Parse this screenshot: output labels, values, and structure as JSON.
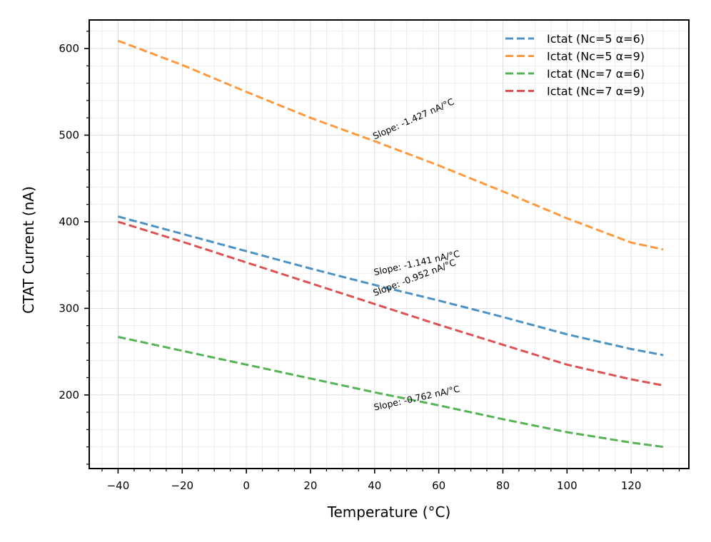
{
  "chart_data": {
    "type": "line",
    "title": "",
    "xlabel": "Temperature (°C)",
    "ylabel": "CTAT Current (nA)",
    "xlim": [
      -49,
      138
    ],
    "ylim": [
      115,
      633
    ],
    "x_ticks": [
      -40,
      -20,
      0,
      20,
      40,
      60,
      80,
      100,
      120
    ],
    "y_ticks": [
      200,
      300,
      400,
      500,
      600
    ],
    "x_tick_labels": [
      "−40",
      "−20",
      "0",
      "20",
      "40",
      "60",
      "80",
      "100",
      "120"
    ],
    "y_tick_labels": [
      "200",
      "300",
      "400",
      "500",
      "600"
    ],
    "grid": true,
    "legend_position": "top-right",
    "x": [
      -40,
      -20,
      0,
      20,
      40,
      60,
      80,
      100,
      120,
      130
    ],
    "series": [
      {
        "name": "Ictat (Nc=5 α=6)",
        "color": "#1f77b4",
        "values": [
          406,
          386,
          366,
          346,
          327,
          309,
          290,
          270,
          253,
          246
        ]
      },
      {
        "name": "Ictat (Nc=5 α=9)",
        "color": "#ff7f0e",
        "values": [
          609,
          581,
          550,
          520,
          493,
          465,
          435,
          404,
          376,
          368
        ]
      },
      {
        "name": "Ictat (Nc=7 α=6)",
        "color": "#2ca02c",
        "values": [
          267,
          251,
          235,
          219,
          203,
          188,
          172,
          157,
          145,
          140
        ]
      },
      {
        "name": "Ictat (Nc=7 α=9)",
        "color": "#d62728",
        "values": [
          400,
          377,
          353,
          329,
          305,
          281,
          258,
          235,
          218,
          211
        ]
      }
    ],
    "annotations": [
      {
        "text": "Slope: -1.427 nA/°C",
        "x": 40,
        "y": 495,
        "angle": -24
      },
      {
        "text": "Slope: -1.141 nA/°C",
        "x": 40,
        "y": 338,
        "angle": -12.5
      },
      {
        "text": "Slope: -0.952 nA/°C",
        "x": 40,
        "y": 314,
        "angle": -21
      },
      {
        "text": "Slope: -0.762 nA/°C",
        "x": 40,
        "y": 182,
        "angle": -12.5
      }
    ]
  }
}
